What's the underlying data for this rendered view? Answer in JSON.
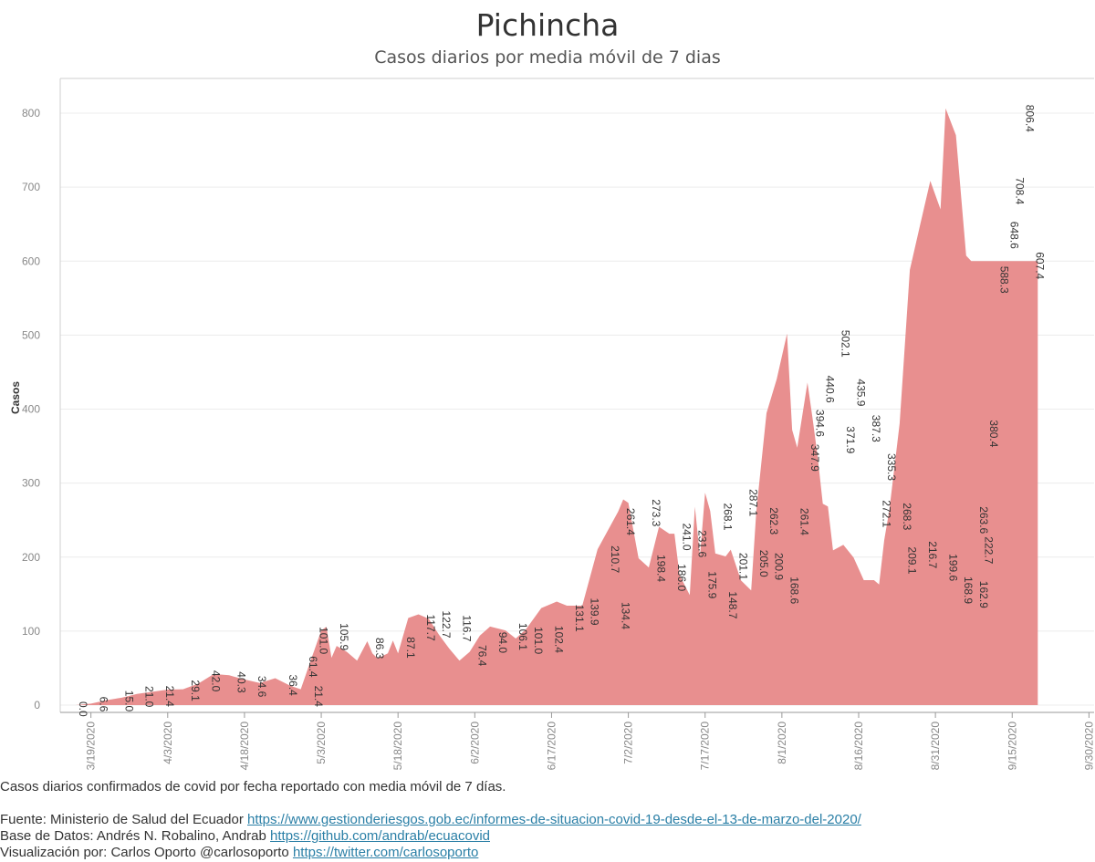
{
  "chart_data": {
    "type": "area",
    "title": "Pichincha",
    "subtitle": "Casos diarios por media móvil de 7 dias",
    "ylabel": "Casos",
    "xlabel": "",
    "ylim": [
      0,
      850
    ],
    "yticks": [
      0,
      100,
      200,
      300,
      400,
      500,
      600,
      700,
      800
    ],
    "xlim": [
      "2020-03-13",
      "2020-10-01"
    ],
    "xtick_labels": [
      "3/19/2020",
      "4/3/2020",
      "4/18/2020",
      "5/3/2020",
      "5/18/2020",
      "6/2/2020",
      "6/17/2020",
      "7/2/2020",
      "7/17/2020",
      "8/1/2020",
      "8/16/2020",
      "8/31/2020",
      "9/15/2020",
      "9/30/2020"
    ],
    "grid": true,
    "color": "#e88f8f",
    "series": [
      {
        "x": [
          "2020-03-13",
          "2020-03-16",
          "2020-03-19",
          "2020-03-22",
          "2020-03-25",
          "2020-03-28",
          "2020-03-31",
          "2020-04-03",
          "2020-04-06",
          "2020-04-09",
          "2020-04-12",
          "2020-04-15",
          "2020-04-18",
          "2020-04-21",
          "2020-04-24",
          "2020-04-27",
          "2020-04-29",
          "2020-05-01",
          "2020-05-03",
          "2020-05-04",
          "2020-05-05",
          "2020-05-06",
          "2020-05-08",
          "2020-05-10",
          "2020-05-12",
          "2020-05-13",
          "2020-05-14",
          "2020-05-16",
          "2020-05-17",
          "2020-05-18",
          "2020-05-20",
          "2020-05-22",
          "2020-05-24",
          "2020-05-26",
          "2020-05-28",
          "2020-05-30",
          "2020-06-01",
          "2020-06-03",
          "2020-06-05",
          "2020-06-08",
          "2020-06-10",
          "2020-06-12",
          "2020-06-15",
          "2020-06-18",
          "2020-06-20",
          "2020-06-23",
          "2020-06-26",
          "2020-06-30",
          "2020-07-01",
          "2020-07-02",
          "2020-07-04",
          "2020-07-06",
          "2020-07-08",
          "2020-07-10",
          "2020-07-11",
          "2020-07-12",
          "2020-07-14",
          "2020-07-15",
          "2020-07-16",
          "2020-07-17",
          "2020-07-18",
          "2020-07-19",
          "2020-07-21",
          "2020-07-22",
          "2020-07-24",
          "2020-07-26",
          "2020-07-27",
          "2020-07-29",
          "2020-07-31",
          "2020-08-02",
          "2020-08-03",
          "2020-08-04",
          "2020-08-06",
          "2020-08-07",
          "2020-08-08",
          "2020-08-09",
          "2020-08-10",
          "2020-08-11",
          "2020-08-13",
          "2020-08-15",
          "2020-08-17",
          "2020-08-19",
          "2020-08-20",
          "2020-08-21",
          "2020-08-22",
          "2020-08-24",
          "2020-08-26",
          "2020-08-28",
          "2020-08-30",
          "2020-09-01",
          "2020-09-02",
          "2020-09-04",
          "2020-09-06",
          "2020-09-07",
          "2020-09-08",
          "2020-09-09",
          "2020-09-10",
          "2020-09-11",
          "2020-09-12",
          "2020-09-13",
          "2020-09-14",
          "2020-09-15",
          "2020-09-16",
          "2020-09-17",
          "2020-09-18",
          "2020-09-19",
          "2020-09-20"
        ],
        "y": [
          0,
          0,
          2,
          6.6,
          10,
          15,
          18,
          21,
          21.4,
          29.1,
          42,
          40.3,
          34.6,
          30,
          36.4,
          26,
          21.4,
          61.4,
          101,
          105.9,
          64,
          80,
          72,
          60,
          86.3,
          70,
          63,
          70,
          87.1,
          70,
          117.7,
          122.7,
          116.7,
          95,
          76.4,
          60,
          72,
          94,
          106.1,
          101,
          90,
          102.4,
          131.1,
          139.9,
          134.4,
          134.4,
          210.7,
          261.4,
          278,
          273.3,
          198.4,
          186,
          241,
          231.6,
          231.6,
          175.9,
          148.7,
          268.1,
          201.1,
          287.1,
          262.3,
          205,
          200.9,
          210,
          168.6,
          155,
          261.4,
          394.6,
          440.6,
          502.1,
          371.9,
          347.9,
          435.9,
          387.3,
          335.3,
          272.1,
          268.3,
          209.1,
          216.7,
          199.6,
          168.9,
          168.9,
          162.9,
          222.7,
          263.6,
          380.4,
          588.3,
          648.6,
          708.4,
          670,
          806.4,
          770,
          607.4,
          600,
          600,
          600,
          600,
          600,
          600,
          600,
          600,
          600,
          600,
          600,
          600,
          600,
          600
        ]
      }
    ],
    "data_labels": [
      {
        "date": "2020-03-16",
        "value": "0.0"
      },
      {
        "date": "2020-03-20",
        "value": "6.6"
      },
      {
        "date": "2020-03-25",
        "value": "15.0"
      },
      {
        "date": "2020-03-29",
        "value": "21.0"
      },
      {
        "date": "2020-04-02",
        "value": "21.4"
      },
      {
        "date": "2020-04-07",
        "value": "29.1"
      },
      {
        "date": "2020-04-11",
        "value": "42.0"
      },
      {
        "date": "2020-04-16",
        "value": "40.3"
      },
      {
        "date": "2020-04-20",
        "value": "34.6"
      },
      {
        "date": "2020-04-26",
        "value": "36.4"
      },
      {
        "date": "2020-04-30",
        "value": "61.4"
      },
      {
        "date": "2020-05-01",
        "value": "21.4"
      },
      {
        "date": "2020-05-02",
        "value": "101.0"
      },
      {
        "date": "2020-05-06",
        "value": "105.9"
      },
      {
        "date": "2020-05-13",
        "value": "86.3"
      },
      {
        "date": "2020-05-19",
        "value": "87.1"
      },
      {
        "date": "2020-05-23",
        "value": "117.7"
      },
      {
        "date": "2020-05-26",
        "value": "122.7"
      },
      {
        "date": "2020-05-30",
        "value": "116.7"
      },
      {
        "date": "2020-06-02",
        "value": "76.4"
      },
      {
        "date": "2020-06-06",
        "value": "94.0"
      },
      {
        "date": "2020-06-10",
        "value": "106.1"
      },
      {
        "date": "2020-06-13",
        "value": "101.0"
      },
      {
        "date": "2020-06-17",
        "value": "102.4"
      },
      {
        "date": "2020-06-21",
        "value": "131.1"
      },
      {
        "date": "2020-06-24",
        "value": "139.9"
      },
      {
        "date": "2020-06-28",
        "value": "210.7"
      },
      {
        "date": "2020-06-30",
        "value": "134.4"
      },
      {
        "date": "2020-07-01",
        "value": "261.4"
      },
      {
        "date": "2020-07-06",
        "value": "273.3"
      },
      {
        "date": "2020-07-07",
        "value": "198.4"
      },
      {
        "date": "2020-07-11",
        "value": "186.0"
      },
      {
        "date": "2020-07-12",
        "value": "241.0"
      },
      {
        "date": "2020-07-15",
        "value": "231.6"
      },
      {
        "date": "2020-07-17",
        "value": "175.9"
      },
      {
        "date": "2020-07-20",
        "value": "268.1"
      },
      {
        "date": "2020-07-21",
        "value": "148.7"
      },
      {
        "date": "2020-07-23",
        "value": "201.1"
      },
      {
        "date": "2020-07-25",
        "value": "287.1"
      },
      {
        "date": "2020-07-27",
        "value": "205.0"
      },
      {
        "date": "2020-07-29",
        "value": "262.3"
      },
      {
        "date": "2020-07-30",
        "value": "200.9"
      },
      {
        "date": "2020-08-02",
        "value": "168.6"
      },
      {
        "date": "2020-08-04",
        "value": "261.4"
      },
      {
        "date": "2020-08-06",
        "value": "347.9"
      },
      {
        "date": "2020-08-07",
        "value": "394.6"
      },
      {
        "date": "2020-08-09",
        "value": "440.6"
      },
      {
        "date": "2020-08-12",
        "value": "502.1"
      },
      {
        "date": "2020-08-13",
        "value": "371.9"
      },
      {
        "date": "2020-08-15",
        "value": "435.9"
      },
      {
        "date": "2020-08-18",
        "value": "387.3"
      },
      {
        "date": "2020-08-20",
        "value": "272.1"
      },
      {
        "date": "2020-08-21",
        "value": "335.3"
      },
      {
        "date": "2020-08-24",
        "value": "268.3"
      },
      {
        "date": "2020-08-25",
        "value": "209.1"
      },
      {
        "date": "2020-08-29",
        "value": "216.7"
      },
      {
        "date": "2020-09-02",
        "value": "199.6"
      },
      {
        "date": "2020-09-05",
        "value": "168.9"
      },
      {
        "date": "2020-09-08",
        "value": "162.9"
      },
      {
        "date": "2020-09-08",
        "value": "263.6"
      },
      {
        "date": "2020-09-09",
        "value": "222.7"
      },
      {
        "date": "2020-09-10",
        "value": "380.4"
      },
      {
        "date": "2020-09-12",
        "value": "588.3"
      },
      {
        "date": "2020-09-14",
        "value": "648.6"
      },
      {
        "date": "2020-09-15",
        "value": "708.4"
      },
      {
        "date": "2020-09-17",
        "value": "806.4"
      },
      {
        "date": "2020-09-19",
        "value": "607.4"
      }
    ]
  },
  "notes": {
    "description": "Casos diarios confirmados de covid por fecha reportado con media móvil de 7 días.",
    "source_prefix": "Fuente: Ministerio de Salud del Ecuador ",
    "source_link": "https://www.gestionderiesgos.gob.ec/informes-de-situacion-covid-19-desde-el-13-de-marzo-del-2020/",
    "db_prefix": "Base de Datos: Andrés N. Robalino, Andrab ",
    "db_link": "https://github.com/andrab/ecuacovid",
    "viz_prefix": "Visualización por: Carlos Oporto @carlosoporto ",
    "viz_link": "https://twitter.com/carlosoporto"
  }
}
